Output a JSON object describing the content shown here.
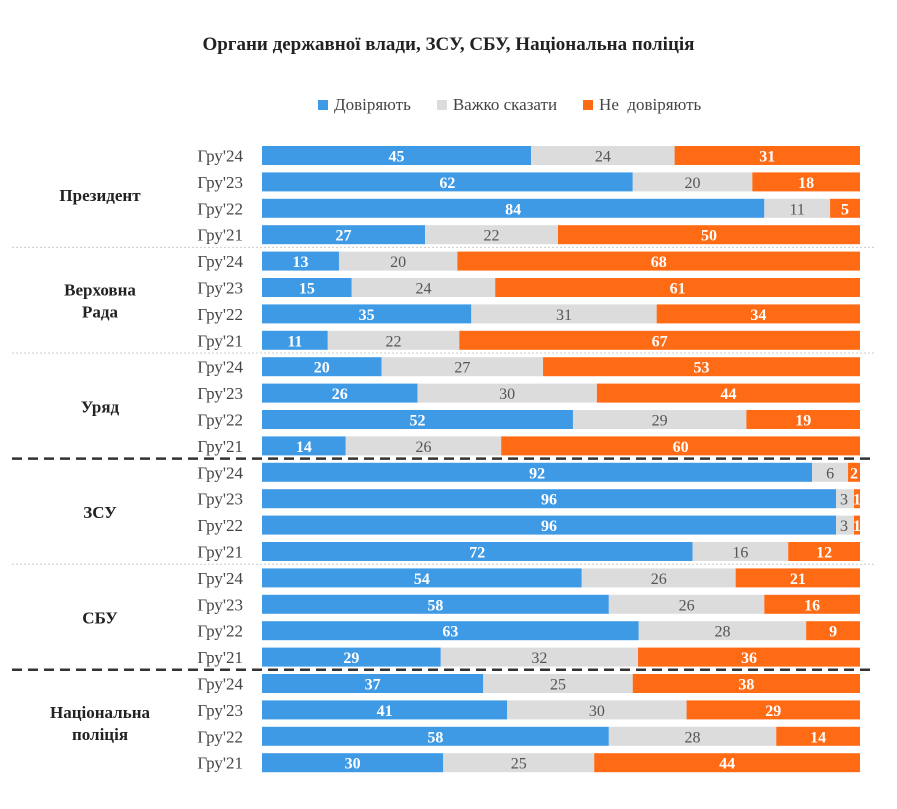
{
  "chart_data": {
    "type": "bar",
    "orientation": "horizontal",
    "stacked": true,
    "title": "Органи державної влади, ЗСУ, СБУ, Національна поліція",
    "legend_position": "top",
    "colors": {
      "trust": "#3f9ae6",
      "hard_to_say": "#dcdcdc",
      "distrust": "#ff6a14"
    },
    "series": [
      {
        "name": "Довіряють",
        "key": "trust"
      },
      {
        "name": "Важко сказати",
        "key": "hard_to_say"
      },
      {
        "name": "Не  довіряють",
        "key": "distrust"
      }
    ],
    "groups": [
      {
        "label": "Президент",
        "rows": [
          {
            "label": "Гру'24",
            "values": [
              45,
              24,
              31
            ]
          },
          {
            "label": "Гру'23",
            "values": [
              62,
              20,
              18
            ]
          },
          {
            "label": "Гру'22",
            "values": [
              84,
              11,
              5
            ]
          },
          {
            "label": "Гру'21",
            "values": [
              27,
              22,
              50
            ]
          }
        ]
      },
      {
        "label": "Верховна Рада",
        "rows": [
          {
            "label": "Гру'24",
            "values": [
              13,
              20,
              68
            ]
          },
          {
            "label": "Гру'23",
            "values": [
              15,
              24,
              61
            ]
          },
          {
            "label": "Гру'22",
            "values": [
              35,
              31,
              34
            ]
          },
          {
            "label": "Гру'21",
            "values": [
              11,
              22,
              67
            ]
          }
        ]
      },
      {
        "label": "Уряд",
        "rows": [
          {
            "label": "Гру'24",
            "values": [
              20,
              27,
              53
            ]
          },
          {
            "label": "Гру'23",
            "values": [
              26,
              30,
              44
            ]
          },
          {
            "label": "Гру'22",
            "values": [
              52,
              29,
              19
            ]
          },
          {
            "label": "Гру'21",
            "values": [
              14,
              26,
              60
            ]
          }
        ]
      },
      {
        "label": "ЗСУ",
        "rows": [
          {
            "label": "Гру'24",
            "values": [
              92,
              6,
              2
            ]
          },
          {
            "label": "Гру'23",
            "values": [
              96,
              3,
              1
            ]
          },
          {
            "label": "Гру'22",
            "values": [
              96,
              3,
              1
            ]
          },
          {
            "label": "Гру'21",
            "values": [
              72,
              16,
              12
            ]
          }
        ]
      },
      {
        "label": "СБУ",
        "rows": [
          {
            "label": "Гру'24",
            "values": [
              54,
              26,
              21
            ]
          },
          {
            "label": "Гру'23",
            "values": [
              58,
              26,
              16
            ]
          },
          {
            "label": "Гру'22",
            "values": [
              63,
              28,
              9
            ]
          },
          {
            "label": "Гру'21",
            "values": [
              29,
              32,
              36
            ]
          }
        ]
      },
      {
        "label": "Національна поліція",
        "rows": [
          {
            "label": "Гру'24",
            "values": [
              37,
              25,
              38
            ]
          },
          {
            "label": "Гру'23",
            "values": [
              41,
              30,
              29
            ]
          },
          {
            "label": "Гру'22",
            "values": [
              58,
              28,
              14
            ]
          },
          {
            "label": "Гру'21",
            "values": [
              30,
              25,
              44
            ]
          }
        ]
      }
    ]
  }
}
